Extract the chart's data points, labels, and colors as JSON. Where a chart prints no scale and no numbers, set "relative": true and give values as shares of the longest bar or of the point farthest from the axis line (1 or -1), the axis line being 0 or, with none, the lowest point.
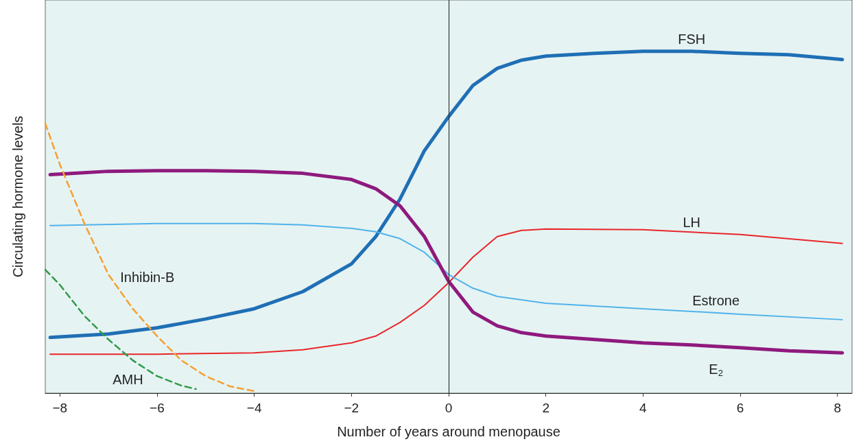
{
  "chart_data": {
    "type": "line",
    "relative": true,
    "xlabel": "Number of years around menopause",
    "ylabel": "Circulating hormone levels",
    "xlim": [
      -8.3,
      8.3
    ],
    "xticks": [
      {
        "value": -8,
        "label": "−8"
      },
      {
        "value": -6,
        "label": "−6"
      },
      {
        "value": -4,
        "label": "−4"
      },
      {
        "value": -2,
        "label": "−2"
      },
      0,
      2,
      4,
      6,
      8
    ],
    "grid": false,
    "legend": false,
    "marker": "none",
    "ref_lines": [
      {
        "axis": "x",
        "value": 0,
        "color": "#333333"
      }
    ],
    "series": [
      {
        "name": "FSH",
        "color": "#1f6fb5",
        "line_style": "solid",
        "x": [
          -8.2,
          -7,
          -6,
          -5,
          -4,
          -3,
          -2,
          -1.5,
          -1,
          -0.5,
          0,
          0.5,
          1,
          1.5,
          2,
          3,
          4,
          5,
          6,
          7,
          8.1
        ],
        "values": [
          0.163,
          0.173,
          0.191,
          0.217,
          0.247,
          0.297,
          0.378,
          0.458,
          0.568,
          0.709,
          0.809,
          0.9,
          0.95,
          0.974,
          0.986,
          0.994,
          1,
          1,
          0.994,
          0.99,
          0.976
        ]
      },
      {
        "name": "LH",
        "color": "#e8262a",
        "line_style": "solid",
        "x": [
          -8.2,
          -6,
          -4,
          -3,
          -2,
          -1.5,
          -1,
          -0.5,
          0,
          0.5,
          1,
          1.5,
          2,
          4,
          6,
          8.1
        ],
        "values": [
          0.114,
          0.114,
          0.118,
          0.127,
          0.147,
          0.167,
          0.207,
          0.257,
          0.323,
          0.398,
          0.458,
          0.476,
          0.48,
          0.478,
          0.464,
          0.438
        ]
      },
      {
        "name": "Estrone",
        "color": "#4fb3ea",
        "line_style": "solid",
        "x": [
          -8.2,
          -6,
          -4,
          -3,
          -2,
          -1.5,
          -1,
          -0.5,
          0,
          0.5,
          1,
          2,
          4,
          6,
          8.1
        ],
        "values": [
          0.49,
          0.496,
          0.496,
          0.492,
          0.482,
          0.472,
          0.452,
          0.412,
          0.347,
          0.307,
          0.283,
          0.263,
          0.247,
          0.231,
          0.215
        ]
      },
      {
        "name": "E$_{2}$",
        "color": "#8e1a7e",
        "line_style": "solid",
        "x": [
          -8.2,
          -7,
          -6,
          -5,
          -4,
          -3,
          -2,
          -1.5,
          -1,
          -0.5,
          0,
          0.5,
          1,
          1.5,
          2,
          3,
          4,
          5,
          6,
          7,
          8.1
        ],
        "values": [
          0.639,
          0.649,
          0.651,
          0.651,
          0.649,
          0.643,
          0.625,
          0.598,
          0.548,
          0.458,
          0.327,
          0.237,
          0.197,
          0.177,
          0.167,
          0.157,
          0.147,
          0.141,
          0.133,
          0.124,
          0.118
        ]
      },
      {
        "name": "Inhibin-B",
        "color": "#f5a030",
        "line_style": "dashed",
        "x": [
          -8.3,
          -8,
          -7.5,
          -7,
          -6.5,
          -6,
          -5.5,
          -5,
          -4.5,
          -4
        ],
        "values": [
          0.789,
          0.669,
          0.498,
          0.347,
          0.247,
          0.167,
          0.096,
          0.05,
          0.02,
          0.006
        ]
      },
      {
        "name": "AMH",
        "color": "#2e9a48",
        "line_style": "dashed",
        "x": [
          -8.3,
          -8,
          -7.5,
          -7,
          -6.5,
          -6,
          -5.5,
          -5.2
        ],
        "values": [
          0.361,
          0.317,
          0.227,
          0.157,
          0.096,
          0.05,
          0.022,
          0.012
        ]
      }
    ]
  }
}
